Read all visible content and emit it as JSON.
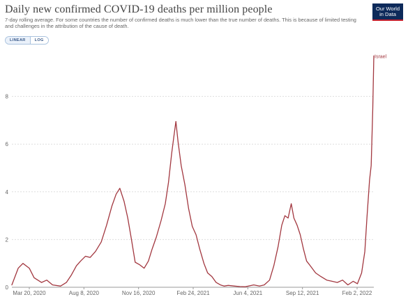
{
  "header": {
    "title": "Daily new confirmed COVID-19 deaths per million people",
    "subtitle": "7-day rolling average. For some countries the number of confirmed deaths is much lower than the true number of deaths. This is because of limited testing and challenges in the attribution of the cause of death.",
    "logo_line1": "Our World",
    "logo_line2": "in Data"
  },
  "toggles": {
    "linear_label": "LINEAR",
    "log_label": "LOG",
    "selected": "LINEAR"
  },
  "colors": {
    "series": "#a2373f",
    "grid": "#dddddd",
    "logo_bg": "#0d2a5a",
    "logo_accent": "#c4202c"
  },
  "chart_data": {
    "type": "line",
    "title": "Daily new confirmed COVID-19 deaths per million people",
    "y_scale": "linear",
    "ylim": [
      0,
      10
    ],
    "yticks": [
      0,
      2,
      4,
      6,
      8
    ],
    "grid": true,
    "legend": "none; series labelled at line end",
    "x_ticks": [
      "Mar 20, 2020",
      "Aug 8, 2020",
      "Nov 16, 2020",
      "Feb 24, 2021",
      "Jun 4, 2021",
      "Sep 12, 2021",
      "Feb 2, 2022"
    ],
    "xlim": [
      "2020-03-20",
      "2022-02-02"
    ],
    "series": [
      {
        "name": "Israel",
        "x": [
          "2020-03-20",
          "2020-04-01",
          "2020-04-10",
          "2020-04-22",
          "2020-05-01",
          "2020-05-15",
          "2020-05-25",
          "2020-06-05",
          "2020-06-20",
          "2020-07-01",
          "2020-07-10",
          "2020-07-20",
          "2020-07-28",
          "2020-08-06",
          "2020-08-15",
          "2020-08-25",
          "2020-09-05",
          "2020-09-15",
          "2020-09-25",
          "2020-10-03",
          "2020-10-10",
          "2020-10-18",
          "2020-10-25",
          "2020-11-01",
          "2020-11-08",
          "2020-11-16",
          "2020-11-25",
          "2020-12-03",
          "2020-12-10",
          "2020-12-18",
          "2020-12-27",
          "2021-01-04",
          "2021-01-10",
          "2021-01-16",
          "2021-01-20",
          "2021-01-24",
          "2021-01-28",
          "2021-02-03",
          "2021-02-10",
          "2021-02-17",
          "2021-02-24",
          "2021-03-03",
          "2021-03-10",
          "2021-03-18",
          "2021-03-25",
          "2021-04-02",
          "2021-04-10",
          "2021-04-18",
          "2021-04-25",
          "2021-05-03",
          "2021-05-15",
          "2021-05-25",
          "2021-06-04",
          "2021-06-20",
          "2021-07-01",
          "2021-07-10",
          "2021-07-20",
          "2021-07-28",
          "2021-08-05",
          "2021-08-12",
          "2021-08-18",
          "2021-08-24",
          "2021-08-30",
          "2021-09-04",
          "2021-09-10",
          "2021-09-16",
          "2021-09-22",
          "2021-09-28",
          "2021-10-05",
          "2021-10-15",
          "2021-10-25",
          "2021-11-05",
          "2021-11-15",
          "2021-11-25",
          "2021-12-05",
          "2021-12-15",
          "2021-12-25",
          "2022-01-02",
          "2022-01-10",
          "2022-01-16",
          "2022-01-20",
          "2022-01-25",
          "2022-01-28",
          "2022-01-31",
          "2022-02-02"
        ],
        "y": [
          0.1,
          0.8,
          1.0,
          0.8,
          0.4,
          0.2,
          0.3,
          0.1,
          0.05,
          0.2,
          0.5,
          0.9,
          1.1,
          1.3,
          1.25,
          1.5,
          1.9,
          2.6,
          3.4,
          3.9,
          4.15,
          3.6,
          2.9,
          2.0,
          1.05,
          0.95,
          0.8,
          1.1,
          1.6,
          2.1,
          2.8,
          3.5,
          4.4,
          5.6,
          6.3,
          6.95,
          6.1,
          5.1,
          4.3,
          3.3,
          2.55,
          2.2,
          1.6,
          1.0,
          0.6,
          0.45,
          0.2,
          0.1,
          0.05,
          0.08,
          0.05,
          0.03,
          0.02,
          0.1,
          0.05,
          0.1,
          0.3,
          0.9,
          1.7,
          2.6,
          3.0,
          2.9,
          3.5,
          2.9,
          2.6,
          2.2,
          1.6,
          1.1,
          0.9,
          0.6,
          0.45,
          0.3,
          0.25,
          0.2,
          0.3,
          0.1,
          0.25,
          0.15,
          0.6,
          1.5,
          2.9,
          4.5,
          5.1,
          7.5,
          9.7
        ]
      }
    ]
  }
}
